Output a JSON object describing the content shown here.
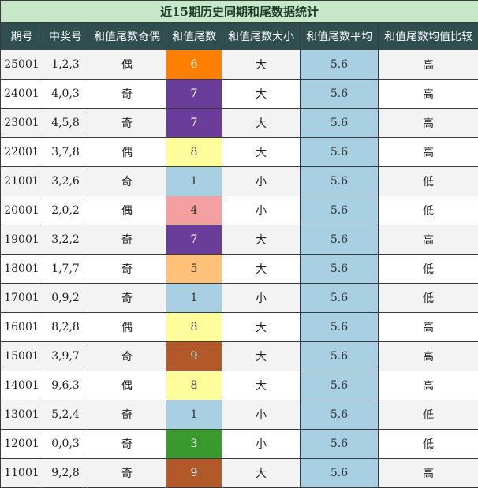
{
  "title": "近15期历史同期和尾数据统计",
  "headers": [
    "期号",
    "中奖号",
    "和值尾数奇偶",
    "和值尾数",
    "和值尾数大小",
    "和值尾数平均",
    "和值尾数均值比较"
  ],
  "colors": {
    "title_bg": "#c7e8c8",
    "header_bg": "#2f4f4f",
    "avg_bg": "#a9cfe3",
    "tail": {
      "1": "#a9cfe3",
      "3": "#3a9a2e",
      "4": "#f4a0a0",
      "5": "#ffc07a",
      "6": "#ff7f00",
      "7": "#6a3d9a",
      "8": "#fdfd99",
      "9": "#b15928"
    }
  },
  "rows": [
    {
      "issue": "25001",
      "numbers": "1,2,3",
      "parity": "偶",
      "tail": "6",
      "size": "大",
      "avg": "5.6",
      "compare": "高"
    },
    {
      "issue": "24001",
      "numbers": "4,0,3",
      "parity": "奇",
      "tail": "7",
      "size": "大",
      "avg": "5.6",
      "compare": "高"
    },
    {
      "issue": "23001",
      "numbers": "4,5,8",
      "parity": "奇",
      "tail": "7",
      "size": "大",
      "avg": "5.6",
      "compare": "高"
    },
    {
      "issue": "22001",
      "numbers": "3,7,8",
      "parity": "偶",
      "tail": "8",
      "size": "大",
      "avg": "5.6",
      "compare": "高"
    },
    {
      "issue": "21001",
      "numbers": "3,2,6",
      "parity": "奇",
      "tail": "1",
      "size": "小",
      "avg": "5.6",
      "compare": "低"
    },
    {
      "issue": "20001",
      "numbers": "2,0,2",
      "parity": "偶",
      "tail": "4",
      "size": "小",
      "avg": "5.6",
      "compare": "低"
    },
    {
      "issue": "19001",
      "numbers": "3,2,2",
      "parity": "奇",
      "tail": "7",
      "size": "大",
      "avg": "5.6",
      "compare": "高"
    },
    {
      "issue": "18001",
      "numbers": "1,7,7",
      "parity": "奇",
      "tail": "5",
      "size": "大",
      "avg": "5.6",
      "compare": "低"
    },
    {
      "issue": "17001",
      "numbers": "0,9,2",
      "parity": "奇",
      "tail": "1",
      "size": "小",
      "avg": "5.6",
      "compare": "低"
    },
    {
      "issue": "16001",
      "numbers": "8,2,8",
      "parity": "偶",
      "tail": "8",
      "size": "大",
      "avg": "5.6",
      "compare": "高"
    },
    {
      "issue": "15001",
      "numbers": "3,9,7",
      "parity": "奇",
      "tail": "9",
      "size": "大",
      "avg": "5.6",
      "compare": "高"
    },
    {
      "issue": "14001",
      "numbers": "9,6,3",
      "parity": "偶",
      "tail": "8",
      "size": "大",
      "avg": "5.6",
      "compare": "高"
    },
    {
      "issue": "13001",
      "numbers": "5,2,4",
      "parity": "奇",
      "tail": "1",
      "size": "小",
      "avg": "5.6",
      "compare": "低"
    },
    {
      "issue": "12001",
      "numbers": "0,0,3",
      "parity": "奇",
      "tail": "3",
      "size": "小",
      "avg": "5.6",
      "compare": "低"
    },
    {
      "issue": "11001",
      "numbers": "9,2,8",
      "parity": "奇",
      "tail": "9",
      "size": "大",
      "avg": "5.6",
      "compare": "高"
    }
  ]
}
